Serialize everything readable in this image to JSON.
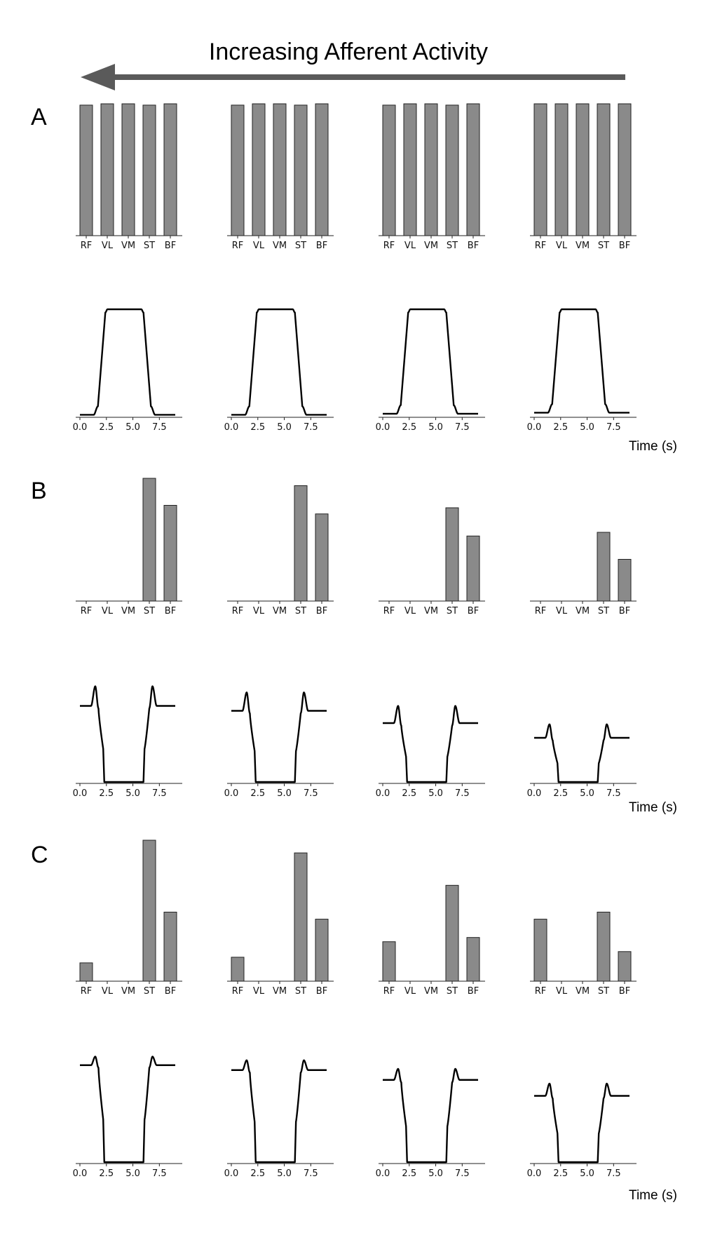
{
  "title": "Increasing Afferent Activity",
  "arrow_color": "#5a5a5a",
  "bar_color": "#8a8a8a",
  "time_axis_label": "Time (s)",
  "muscles": [
    "RF",
    "VL",
    "VM",
    "ST",
    "BF"
  ],
  "time_ticks": [
    "0.0",
    "2.5",
    "5.0",
    "7.5"
  ],
  "panels": [
    {
      "label": "A",
      "time_label_shown": true,
      "bars": [
        {
          "values": [
            0.99,
            1.0,
            1.0,
            0.99,
            1.0
          ]
        },
        {
          "values": [
            0.99,
            1.0,
            1.0,
            0.99,
            1.0
          ]
        },
        {
          "values": [
            0.99,
            1.0,
            1.0,
            0.99,
            1.0
          ]
        },
        {
          "values": [
            1.0,
            1.0,
            1.0,
            1.0,
            1.0
          ]
        }
      ],
      "traces": [
        {
          "shape": "plateau",
          "baseline": 0.01,
          "peak": 0.0,
          "plateau": 1.0
        },
        {
          "shape": "plateau",
          "baseline": 0.01,
          "peak": 0.0,
          "plateau": 1.0
        },
        {
          "shape": "plateau",
          "baseline": 0.02,
          "peak": 0.0,
          "plateau": 1.0
        },
        {
          "shape": "plateau",
          "baseline": 0.03,
          "peak": 0.0,
          "plateau": 1.0
        }
      ]
    },
    {
      "label": "B",
      "time_label_shown": true,
      "bars": [
        {
          "values": [
            0,
            0,
            0,
            1.0,
            0.78
          ]
        },
        {
          "values": [
            0,
            0,
            0,
            0.94,
            0.71
          ]
        },
        {
          "values": [
            0,
            0,
            0,
            0.76,
            0.53
          ]
        },
        {
          "values": [
            0,
            0,
            0,
            0.56,
            0.34
          ]
        }
      ],
      "traces": [
        {
          "shape": "dip",
          "baseline": 0.62,
          "peak": 0.78,
          "plateau": 0.0
        },
        {
          "shape": "dip",
          "baseline": 0.58,
          "peak": 0.73,
          "plateau": 0.0
        },
        {
          "shape": "dip",
          "baseline": 0.48,
          "peak": 0.62,
          "plateau": 0.0
        },
        {
          "shape": "dip",
          "baseline": 0.36,
          "peak": 0.47,
          "plateau": 0.0
        }
      ]
    },
    {
      "label": "C",
      "time_label_shown": true,
      "bars": [
        {
          "values": [
            0.13,
            0,
            0,
            1.0,
            0.49
          ]
        },
        {
          "values": [
            0.17,
            0,
            0,
            0.91,
            0.44
          ]
        },
        {
          "values": [
            0.28,
            0,
            0,
            0.68,
            0.31
          ]
        },
        {
          "values": [
            0.44,
            0,
            0,
            0.49,
            0.21
          ]
        }
      ],
      "traces": [
        {
          "shape": "dip",
          "baseline": 0.79,
          "peak": 0.86,
          "plateau": 0.0
        },
        {
          "shape": "dip",
          "baseline": 0.75,
          "peak": 0.83,
          "plateau": 0.0
        },
        {
          "shape": "dip",
          "baseline": 0.67,
          "peak": 0.76,
          "plateau": 0.0
        },
        {
          "shape": "dip",
          "baseline": 0.54,
          "peak": 0.64,
          "plateau": 0.0
        }
      ]
    }
  ],
  "chart_data": [
    {
      "type": "bar",
      "panel": "A",
      "categories": [
        "RF",
        "VL",
        "VM",
        "ST",
        "BF"
      ],
      "series": [
        {
          "values": [
            0.99,
            1.0,
            1.0,
            0.99,
            1.0
          ]
        },
        {
          "values": [
            0.99,
            1.0,
            1.0,
            0.99,
            1.0
          ]
        },
        {
          "values": [
            0.99,
            1.0,
            1.0,
            0.99,
            1.0
          ]
        },
        {
          "values": [
            1.0,
            1.0,
            1.0,
            1.0,
            1.0
          ]
        }
      ]
    },
    {
      "type": "line",
      "panel": "A",
      "xlabel": "Time (s)",
      "xlim": [
        0,
        9
      ],
      "x_ticks": [
        0.0,
        2.5,
        5.0,
        7.5
      ]
    },
    {
      "type": "bar",
      "panel": "B",
      "categories": [
        "RF",
        "VL",
        "VM",
        "ST",
        "BF"
      ],
      "series": [
        {
          "values": [
            0,
            0,
            0,
            1.0,
            0.78
          ]
        },
        {
          "values": [
            0,
            0,
            0,
            0.94,
            0.71
          ]
        },
        {
          "values": [
            0,
            0,
            0,
            0.76,
            0.53
          ]
        },
        {
          "values": [
            0,
            0,
            0,
            0.56,
            0.34
          ]
        }
      ]
    },
    {
      "type": "line",
      "panel": "B",
      "xlabel": "Time (s)",
      "xlim": [
        0,
        9
      ],
      "x_ticks": [
        0.0,
        2.5,
        5.0,
        7.5
      ]
    },
    {
      "type": "bar",
      "panel": "C",
      "categories": [
        "RF",
        "VL",
        "VM",
        "ST",
        "BF"
      ],
      "series": [
        {
          "values": [
            0.13,
            0,
            0,
            1.0,
            0.49
          ]
        },
        {
          "values": [
            0.17,
            0,
            0,
            0.91,
            0.44
          ]
        },
        {
          "values": [
            0.28,
            0,
            0,
            0.68,
            0.31
          ]
        },
        {
          "values": [
            0.44,
            0,
            0,
            0.49,
            0.21
          ]
        }
      ]
    },
    {
      "type": "line",
      "panel": "C",
      "xlabel": "Time (s)",
      "xlim": [
        0,
        9
      ],
      "x_ticks": [
        0.0,
        2.5,
        5.0,
        7.5
      ]
    }
  ]
}
